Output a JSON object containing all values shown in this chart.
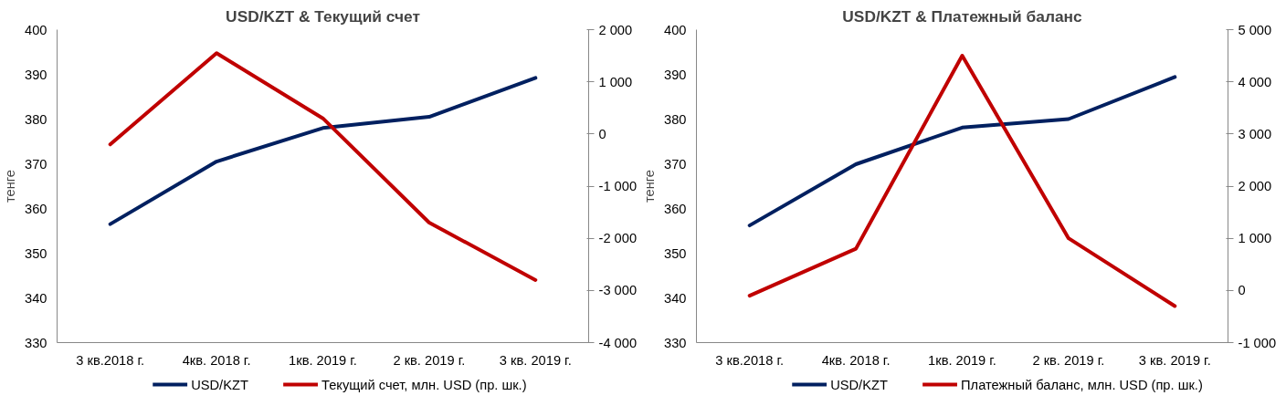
{
  "chart_data": [
    {
      "type": "line",
      "title": "USD/KZT & Текущий счет",
      "ylabel": "тенге",
      "categories": [
        "3 кв.2018 г.",
        "4кв. 2018 г.",
        "1кв. 2019 г.",
        "2 кв. 2019 г.",
        "3 кв. 2019 г."
      ],
      "series": [
        {
          "name": "USD/KZT",
          "color": "#002060",
          "values": [
            356.5,
            370.5,
            378,
            380.5,
            389.2
          ]
        },
        {
          "name": "Текущий счет, млн. USD (пр. шк.)",
          "color": "#c00000",
          "axis": "y2",
          "values": [
            -200,
            1550,
            300,
            -1700,
            -2800
          ]
        }
      ],
      "ylim": [
        330,
        400
      ],
      "yticks": [
        330,
        340,
        350,
        360,
        370,
        380,
        390,
        400
      ],
      "y2lim": [
        -4000,
        2000
      ],
      "y2ticks": [
        {
          "value": -4000,
          "label": "-4 000"
        },
        {
          "value": -3000,
          "label": "-3 000"
        },
        {
          "value": -2000,
          "label": "-2 000"
        },
        {
          "value": -1000,
          "label": "-1 000"
        },
        0,
        {
          "value": 1000,
          "label": "1 000"
        },
        {
          "value": 2000,
          "label": "2 000"
        }
      ],
      "legend": "bottom",
      "grid": false,
      "line_style": "solid",
      "marker": "none"
    },
    {
      "type": "line",
      "title": "USD/KZT & Платежный баланс",
      "ylabel": "тенге",
      "categories": [
        "3 кв.2018 г.",
        "4кв. 2018 г.",
        "1кв. 2019 г.",
        "2 кв. 2019 г.",
        "3 кв. 2019 г."
      ],
      "series": [
        {
          "name": "USD/KZT",
          "color": "#002060",
          "values": [
            356.2,
            369.9,
            378.1,
            380,
            389.4
          ]
        },
        {
          "name": "Платежный баланс, млн. USD (пр. шк.)",
          "color": "#c00000",
          "axis": "y2",
          "values": [
            -100,
            800,
            4500,
            1000,
            -300
          ]
        }
      ],
      "ylim": [
        330,
        400
      ],
      "yticks": [
        330,
        340,
        350,
        360,
        370,
        380,
        390,
        400
      ],
      "y2lim": [
        -1000,
        5000
      ],
      "y2ticks": [
        {
          "value": -1000,
          "label": "-1 000"
        },
        0,
        {
          "value": 1000,
          "label": "1 000"
        },
        {
          "value": 2000,
          "label": "2 000"
        },
        {
          "value": 3000,
          "label": "3 000"
        },
        {
          "value": 4000,
          "label": "4 000"
        },
        {
          "value": 5000,
          "label": "5 000"
        }
      ],
      "legend": "bottom",
      "grid": false,
      "line_style": "solid",
      "marker": "none"
    }
  ]
}
